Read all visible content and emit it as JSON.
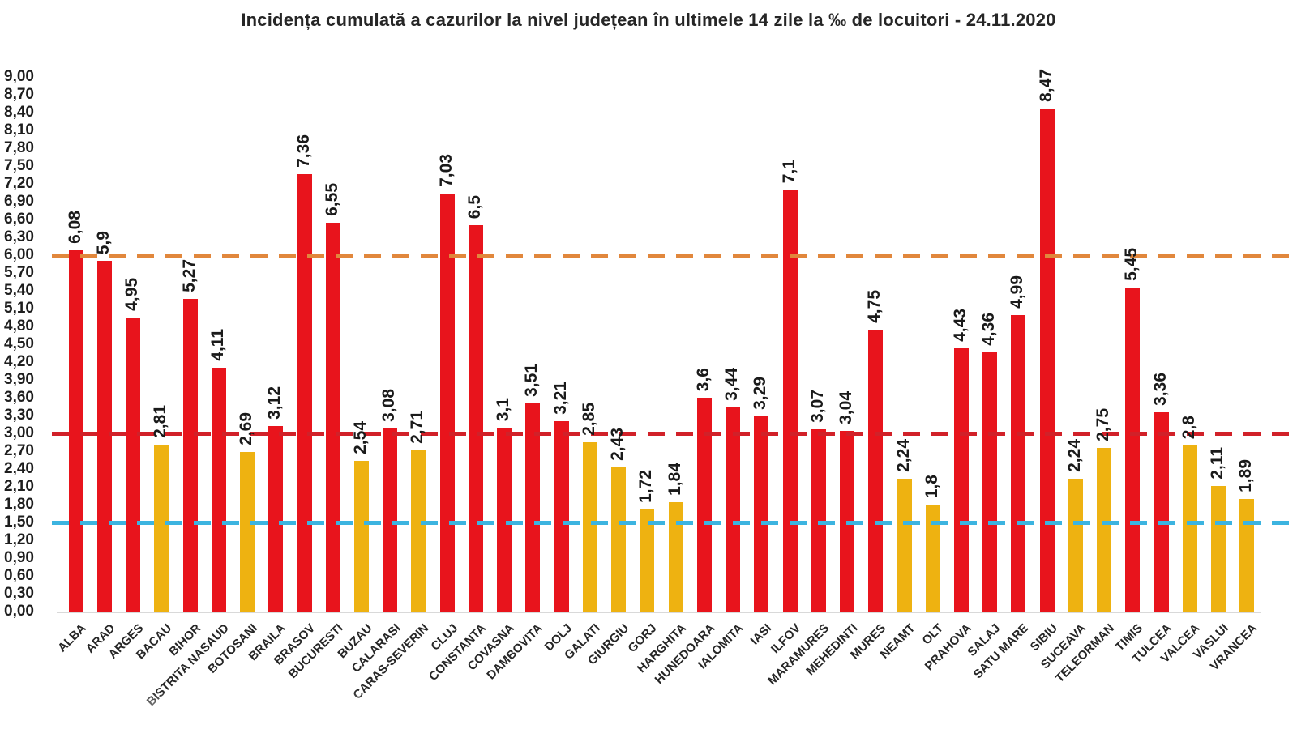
{
  "title": "Incidența cumulată a cazurilor la nivel județean în ultimele 14 zile la ‰ de locuitori - 24.11.2020",
  "chart_data": {
    "type": "bar",
    "categories": [
      "ALBA",
      "ARAD",
      "ARGES",
      "BACAU",
      "BIHOR",
      "BISTRITA NASAUD",
      "BOTOSANI",
      "BRAILA",
      "BRASOV",
      "BUCURESTI",
      "BUZAU",
      "CALARASI",
      "CARAS-SEVERIN",
      "CLUJ",
      "CONSTANTA",
      "COVASNA",
      "DAMBOVITA",
      "DOLJ",
      "GALATI",
      "GIURGIU",
      "GORJ",
      "HARGHITA",
      "HUNEDOARA",
      "IALOMITA",
      "IASI",
      "ILFOV",
      "MARAMURES",
      "MEHEDINTI",
      "MURES",
      "NEAMT",
      "OLT",
      "PRAHOVA",
      "SALAJ",
      "SATU MARE",
      "SIBIU",
      "SUCEAVA",
      "TELEORMAN",
      "TIMIS",
      "TULCEA",
      "VALCEA",
      "VASLUI",
      "VRANCEA"
    ],
    "values": [
      6.08,
      5.9,
      4.95,
      2.81,
      5.27,
      4.11,
      2.69,
      3.12,
      7.36,
      6.55,
      2.54,
      3.08,
      2.71,
      7.03,
      6.5,
      3.1,
      3.51,
      3.21,
      2.85,
      2.43,
      1.72,
      1.84,
      3.6,
      3.44,
      3.29,
      7.1,
      3.07,
      3.04,
      4.75,
      2.24,
      1.8,
      4.43,
      4.36,
      4.99,
      8.47,
      2.24,
      2.75,
      5.45,
      3.36,
      2.8,
      2.11,
      1.89
    ],
    "value_labels": [
      "6,08",
      "5,9",
      "4,95",
      "2,81",
      "5,27",
      "4,11",
      "2,69",
      "3,12",
      "7,36",
      "6,55",
      "2,54",
      "3,08",
      "2,71",
      "7,03",
      "6,5",
      "3,1",
      "3,51",
      "3,21",
      "2,85",
      "2,43",
      "1,72",
      "1,84",
      "3,6",
      "3,44",
      "3,29",
      "7,1",
      "3,07",
      "3,04",
      "4,75",
      "2,24",
      "1,8",
      "4,43",
      "4,36",
      "4,99",
      "8,47",
      "2,24",
      "2,75",
      "5,45",
      "3,36",
      "2,8",
      "2,11",
      "1,89"
    ],
    "title": "Incidența cumulată a cazurilor la nivel județean în ultimele 14 zile la ‰ de locuitori - 24.11.2020",
    "xlabel": "",
    "ylabel": "",
    "ylim": [
      0,
      9
    ],
    "y_tick_step": 0.3,
    "y_tick_labels": [
      "9,00",
      "8,70",
      "8,40",
      "8,10",
      "7,80",
      "7,50",
      "7,20",
      "6,90",
      "6,60",
      "6,30",
      "6,00",
      "5,70",
      "5,40",
      "5,10",
      "4,80",
      "4,50",
      "4,20",
      "3,90",
      "3,60",
      "3,30",
      "3,00",
      "2,70",
      "2,40",
      "2,10",
      "1,80",
      "1,50",
      "1,20",
      "0,90",
      "0,60",
      "0,30",
      "0,00"
    ],
    "grid": "off",
    "legend": "none",
    "color_rule": {
      "split": 3.0,
      "above_color": "#e8141c",
      "below_color": "#eeb211"
    },
    "thresholds": [
      {
        "name": "orange",
        "value": 6.0,
        "color": "#e1873c"
      },
      {
        "name": "red",
        "value": 3.0,
        "color": "#d12129"
      },
      {
        "name": "blue",
        "value": 1.5,
        "color": "#3cb4e0"
      }
    ]
  }
}
